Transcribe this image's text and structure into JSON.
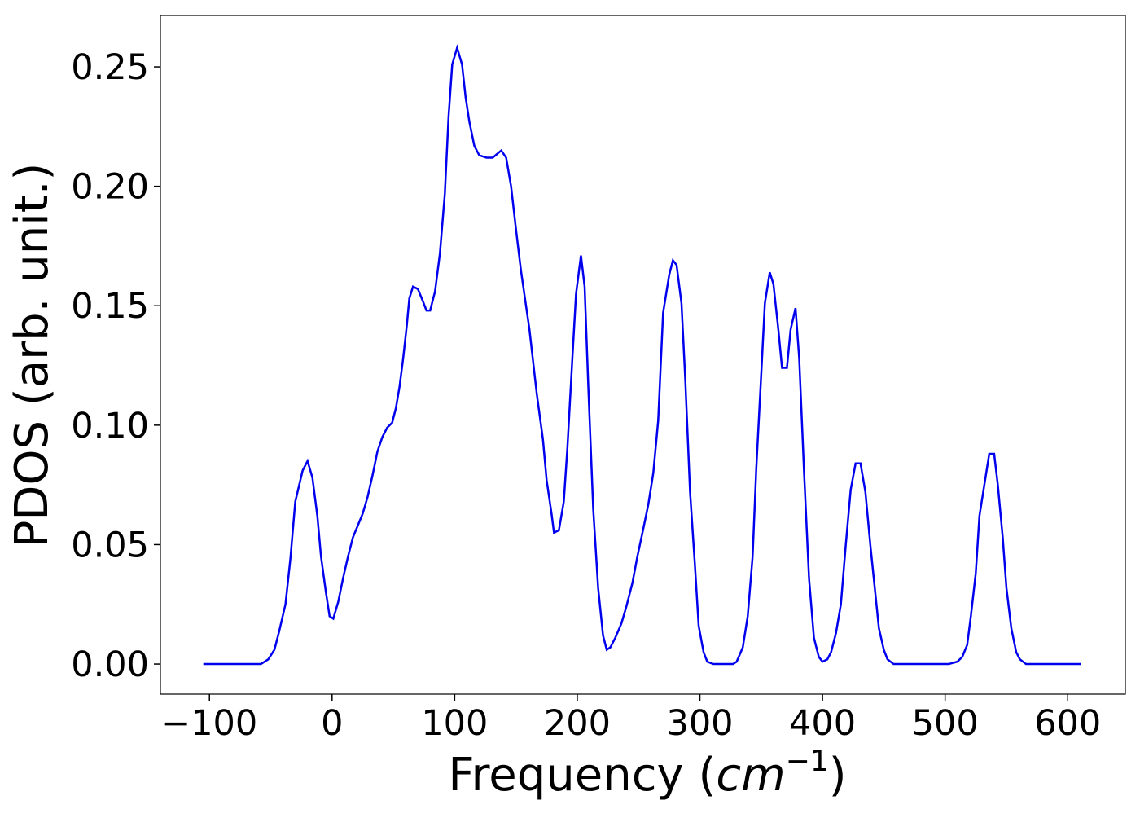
{
  "chart_data": {
    "type": "line",
    "x_label": [
      "Frequency (",
      "cm",
      "−1",
      ")"
    ],
    "y_label": "PDOS (arb. unit.)",
    "x": [
      -105,
      -58,
      -52,
      -47,
      -43,
      -38,
      -34,
      -30,
      -24,
      -20,
      -16,
      -12,
      -9,
      -5,
      -2,
      1,
      5,
      9,
      13,
      17,
      21,
      25,
      29,
      33,
      37,
      41,
      45,
      49,
      52,
      55,
      58,
      61,
      63,
      66,
      70,
      74,
      77,
      80,
      84,
      88,
      92,
      95,
      98,
      102,
      106,
      109,
      112,
      116,
      120,
      126,
      131,
      138,
      142,
      146,
      150,
      154,
      161,
      167,
      172,
      175,
      179,
      181,
      185,
      189,
      192,
      196,
      199,
      203,
      206,
      209,
      213,
      217,
      221,
      224,
      227,
      231,
      236,
      240,
      245,
      249,
      254,
      258,
      262,
      266,
      270,
      275,
      278,
      281,
      285,
      288,
      292,
      296,
      299,
      303,
      306,
      311,
      327,
      330,
      335,
      339,
      343,
      346,
      350,
      353,
      357,
      360,
      364,
      367,
      371,
      374,
      378,
      381,
      385,
      389,
      393,
      397,
      400,
      404,
      407,
      411,
      415,
      419,
      423,
      427,
      431,
      435,
      439,
      443,
      446,
      450,
      453,
      458,
      503,
      510,
      514,
      518,
      521,
      525,
      528,
      532,
      536,
      540,
      543,
      547,
      550,
      554,
      558,
      561,
      566,
      611
    ],
    "series": [
      {
        "color": "#0000ee",
        "values": [
          0,
          0,
          0.002,
          0.006,
          0.014,
          0.025,
          0.044,
          0.068,
          0.081,
          0.085,
          0.078,
          0.062,
          0.045,
          0.03,
          0.02,
          0.019,
          0.026,
          0.036,
          0.045,
          0.053,
          0.058,
          0.063,
          0.07,
          0.079,
          0.089,
          0.095,
          0.099,
          0.101,
          0.107,
          0.116,
          0.128,
          0.142,
          0.153,
          0.158,
          0.157,
          0.152,
          0.148,
          0.148,
          0.156,
          0.172,
          0.197,
          0.229,
          0.251,
          0.258,
          0.251,
          0.237,
          0.227,
          0.217,
          0.213,
          0.212,
          0.212,
          0.215,
          0.212,
          0.2,
          0.182,
          0.165,
          0.14,
          0.113,
          0.094,
          0.077,
          0.063,
          0.055,
          0.056,
          0.068,
          0.091,
          0.128,
          0.155,
          0.171,
          0.158,
          0.116,
          0.065,
          0.032,
          0.012,
          0.006,
          0.007,
          0.011,
          0.017,
          0.024,
          0.034,
          0.045,
          0.057,
          0.067,
          0.08,
          0.102,
          0.147,
          0.163,
          0.169,
          0.167,
          0.151,
          0.12,
          0.072,
          0.041,
          0.016,
          0.005,
          0.001,
          0,
          0,
          0.001,
          0.007,
          0.02,
          0.045,
          0.082,
          0.121,
          0.151,
          0.164,
          0.159,
          0.14,
          0.124,
          0.124,
          0.14,
          0.149,
          0.128,
          0.08,
          0.036,
          0.011,
          0.003,
          0.001,
          0.002,
          0.005,
          0.013,
          0.025,
          0.05,
          0.073,
          0.084,
          0.084,
          0.072,
          0.05,
          0.03,
          0.015,
          0.006,
          0.002,
          0,
          0,
          0.001,
          0.003,
          0.008,
          0.02,
          0.038,
          0.062,
          0.075,
          0.088,
          0.088,
          0.075,
          0.053,
          0.032,
          0.015,
          0.005,
          0.002,
          0,
          0
        ]
      }
    ],
    "xlim": [
      -140,
      647
    ],
    "ylim": [
      -0.0126,
      0.2715
    ],
    "xticks": [
      {
        "value": -100,
        "label": "−100"
      },
      0,
      100,
      200,
      300,
      400,
      500,
      600
    ],
    "yticks": [
      {
        "value": 0,
        "label": "0.00"
      },
      {
        "value": 0.05,
        "label": "0.05"
      },
      {
        "value": 0.1,
        "label": "0.10"
      },
      {
        "value": 0.15,
        "label": "0.15"
      },
      {
        "value": 0.2,
        "label": "0.20"
      },
      {
        "value": 0.25,
        "label": "0.25"
      }
    ],
    "grid": false
  }
}
